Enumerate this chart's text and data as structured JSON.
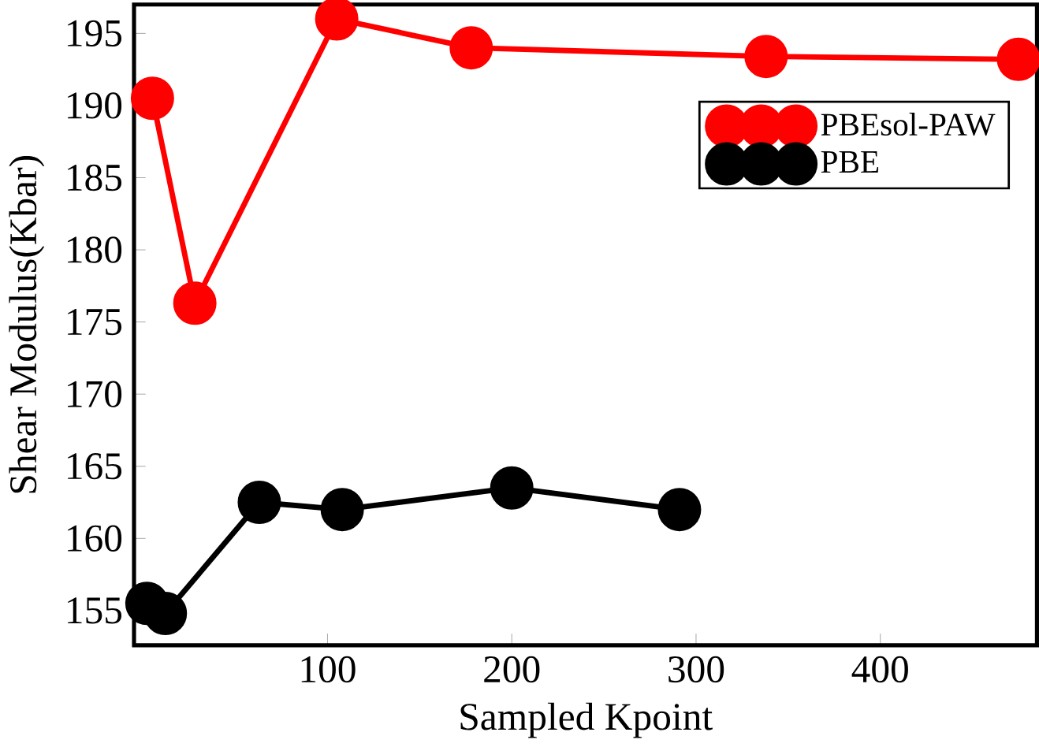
{
  "chart_data": {
    "type": "line",
    "xlabel": "Sampled Kpoint",
    "ylabel": "Shear Modulus(Kbar)",
    "xlim": [
      -5,
      485
    ],
    "ylim": [
      152.6,
      197
    ],
    "xticks": [
      100,
      200,
      300,
      400
    ],
    "yticks": [
      155,
      160,
      165,
      170,
      175,
      180,
      185,
      190,
      195
    ],
    "marker": "circle",
    "legend": "top right",
    "grid": false,
    "series": [
      {
        "name": "PBEsol-PAW",
        "color": "#ff0000",
        "x": [
          5,
          28,
          105,
          178,
          338,
          475
        ],
        "values": [
          190.5,
          176.3,
          196,
          194,
          193.4,
          193.2
        ]
      },
      {
        "name": "PBE",
        "color": "#000000",
        "x": [
          2,
          12,
          63,
          108,
          200,
          291
        ],
        "values": [
          155.5,
          154.8,
          162.5,
          162,
          163.5,
          162
        ]
      }
    ]
  }
}
